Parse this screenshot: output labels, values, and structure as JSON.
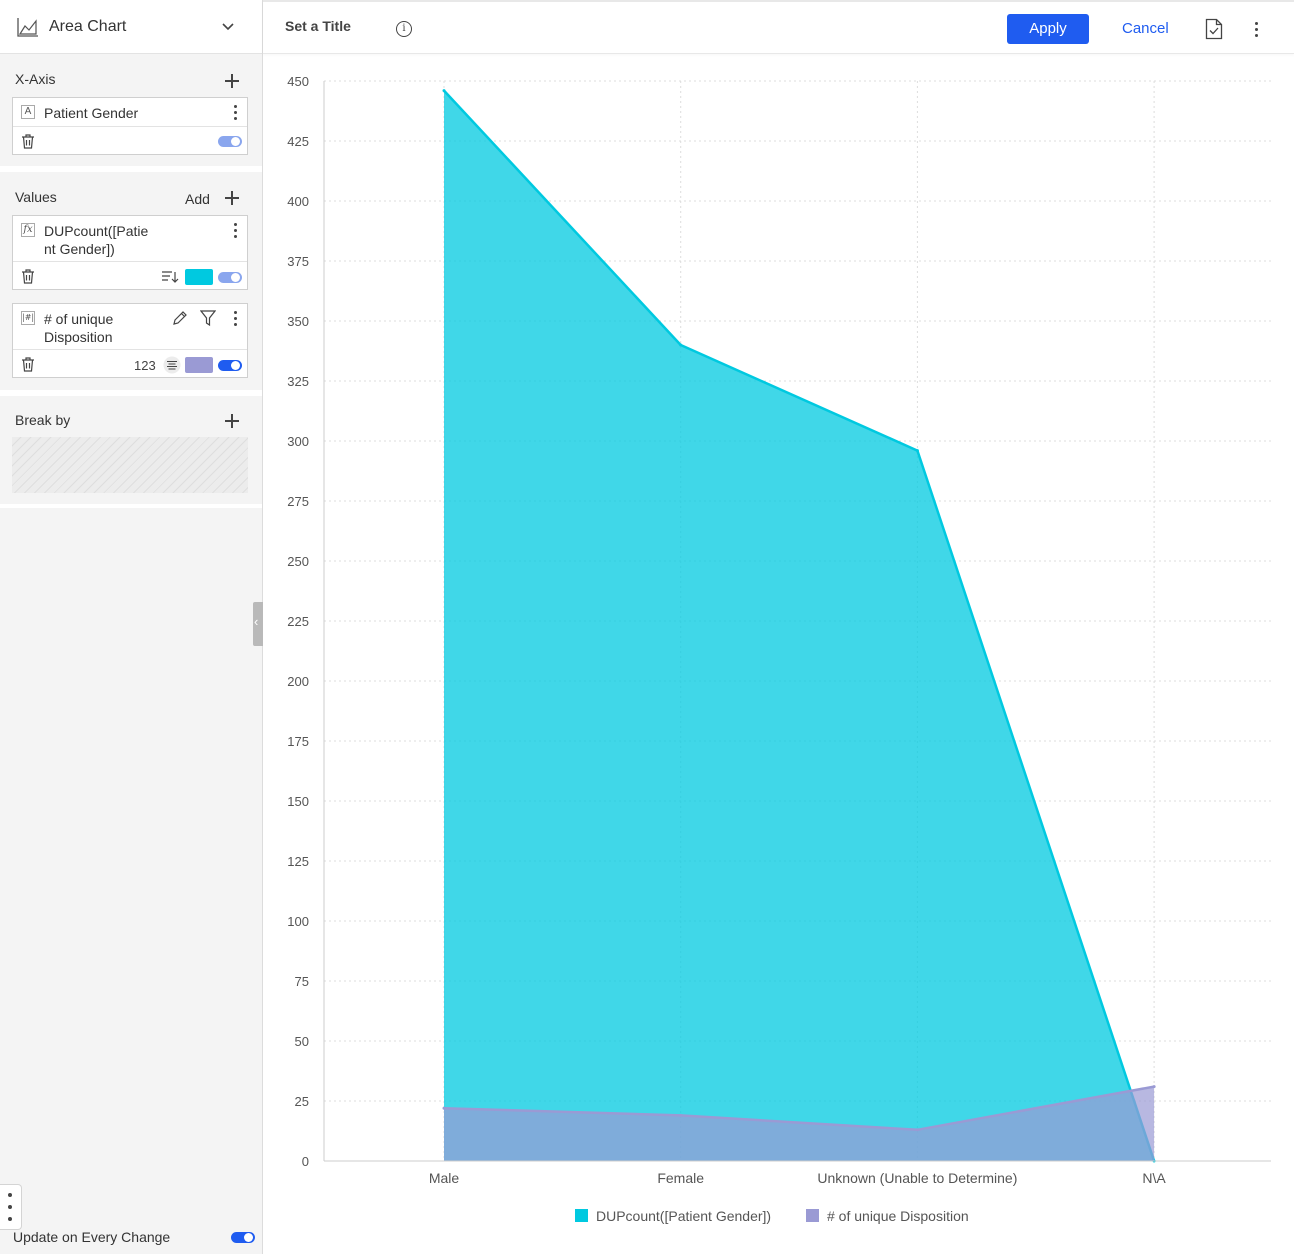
{
  "sidebar": {
    "chart_type_label": "Area Chart",
    "xaxis": {
      "section_label": "X-Axis",
      "field": {
        "type_badge": "A",
        "label": "Patient Gender",
        "enabled": true
      }
    },
    "values": {
      "section_label": "Values",
      "add_label": "Add",
      "items": [
        {
          "type_badge": "fx",
          "label": "DUPcount([Patient Gender])",
          "label_line1": "DUPcount([Patie",
          "label_line2": "nt Gender])",
          "color": "#00c9e0",
          "enabled": true
        },
        {
          "type_badge": "|#|",
          "label": "# of unique Disposition",
          "label_line1": "# of unique",
          "label_line2": "Disposition",
          "format_label": "123",
          "color": "#9a9ad4",
          "enabled": true
        }
      ]
    },
    "breakby": {
      "section_label": "Break by"
    },
    "update_label": "Update on Every Change"
  },
  "topbar": {
    "title": "Set a Title",
    "apply_label": "Apply",
    "cancel_label": "Cancel"
  },
  "colors": {
    "accent": "#1f5cf0",
    "series1": "#00c9e0",
    "series2": "#9a9ad4"
  },
  "chart_data": {
    "type": "area",
    "categories": [
      "Male",
      "Female",
      "Unknown (Unable to Determine)",
      "N\\A"
    ],
    "series": [
      {
        "name": "DUPcount([Patient Gender])",
        "values": [
          446,
          340,
          296,
          0
        ],
        "color": "#00c9e0"
      },
      {
        "name": "# of unique Disposition",
        "values": [
          22,
          19,
          13,
          31
        ],
        "color": "#9a9ad4"
      }
    ],
    "ylim": [
      0,
      450
    ],
    "yticks": [
      0,
      25,
      50,
      75,
      100,
      125,
      150,
      175,
      200,
      225,
      250,
      275,
      300,
      325,
      350,
      375,
      400,
      425,
      450
    ],
    "grid": true,
    "legend_position": "bottom"
  }
}
